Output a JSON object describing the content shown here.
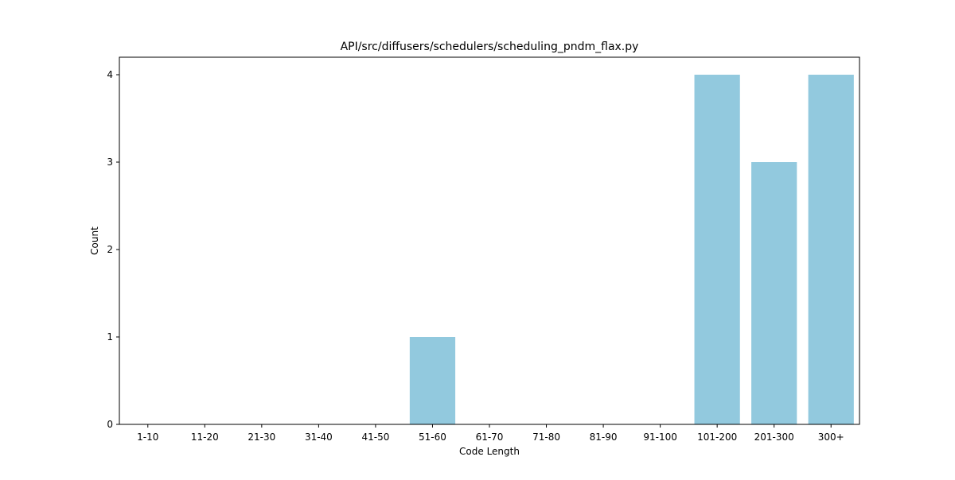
{
  "chart_data": {
    "type": "bar",
    "title": "API/src/diffusers/schedulers/scheduling_pndm_flax.py",
    "xlabel": "Code Length",
    "ylabel": "Count",
    "categories": [
      "1-10",
      "11-20",
      "21-30",
      "31-40",
      "41-50",
      "51-60",
      "61-70",
      "71-80",
      "81-90",
      "91-100",
      "101-200",
      "201-300",
      "300+"
    ],
    "values": [
      0,
      0,
      0,
      0,
      0,
      1,
      0,
      0,
      0,
      0,
      4,
      3,
      4
    ],
    "ylim": [
      0,
      4.2
    ],
    "yticks": [
      0,
      1,
      2,
      3,
      4
    ],
    "grid": false,
    "colors": {
      "bar": "#92c9de",
      "axis": "#000000",
      "background": "#ffffff"
    }
  }
}
